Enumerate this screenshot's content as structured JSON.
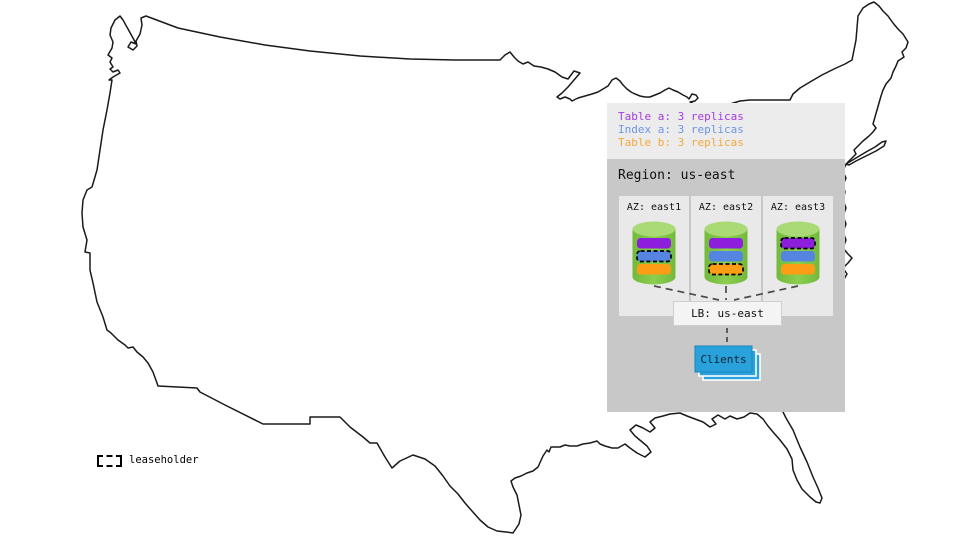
{
  "colors": {
    "table_a_bar": "#8C1EDC",
    "index_a_bar": "#5585E0",
    "table_b_bar": "#FB9E15",
    "table_a_text": "#A43BE2",
    "index_a_text": "#6C95E8",
    "table_b_text": "#F3A83C",
    "clients_fill": "#29A2DC",
    "clients_border": "#1B84BC",
    "cylinder_body": "#7DC242",
    "cylinder_top": "#A9DA75",
    "panel_legend_bg": "#ECECEC",
    "panel_region_bg": "#C8C8C8",
    "az_box_bg": "#E9E9E9",
    "lb_box_bg": "#F4F4F4",
    "connector_gray": "#4A4A4A",
    "map_stroke": "#1A1A1A"
  },
  "legend": {
    "items": [
      {
        "label": "Table a: 3 replicas",
        "color_key": "table_a_text"
      },
      {
        "label": "Index a: 3 replicas",
        "color_key": "index_a_text"
      },
      {
        "label": "Table b: 3 replicas",
        "color_key": "table_b_text"
      }
    ]
  },
  "region": {
    "title": "Region: us-east",
    "azs": [
      {
        "label": "AZ: east1",
        "replicas": [
          {
            "key": "table_a_bar",
            "leaseholder": false
          },
          {
            "key": "index_a_bar",
            "leaseholder": true
          },
          {
            "key": "table_b_bar",
            "leaseholder": false
          }
        ]
      },
      {
        "label": "AZ: east2",
        "replicas": [
          {
            "key": "table_a_bar",
            "leaseholder": false
          },
          {
            "key": "index_a_bar",
            "leaseholder": false
          },
          {
            "key": "table_b_bar",
            "leaseholder": true
          }
        ]
      },
      {
        "label": "AZ: east3",
        "replicas": [
          {
            "key": "table_a_bar",
            "leaseholder": true
          },
          {
            "key": "index_a_bar",
            "leaseholder": false
          },
          {
            "key": "table_b_bar",
            "leaseholder": false
          }
        ]
      }
    ],
    "lb_label": "LB: us-east",
    "clients_label": "Clients"
  },
  "map_legend": {
    "leaseholder_label": "leaseholder"
  }
}
